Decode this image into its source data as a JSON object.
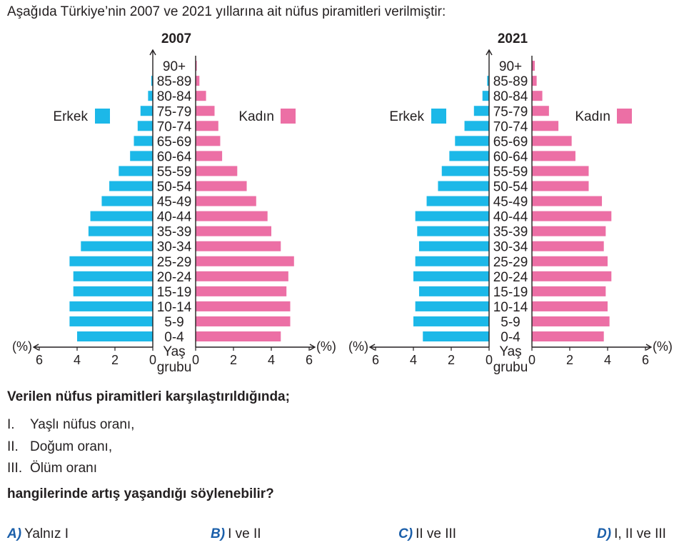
{
  "intro": "Aşağıda Türkiye’nin 2007 ve 2021 yıllarına ait nüfus piramitleri verilmiştir:",
  "question": "Verilen nüfus piramitleri karşılaştırıldığında;",
  "statements": [
    {
      "num": "I.",
      "text": "Yaşlı nüfus oranı,"
    },
    {
      "num": "II.",
      "text": "Doğum oranı,"
    },
    {
      "num": "III.",
      "text": "Ölüm oranı"
    }
  ],
  "ask": "hangilerinde artış yaşandığı söylenebilir?",
  "options": [
    {
      "letter": "A)",
      "text": "Yalnız I"
    },
    {
      "letter": "B)",
      "text": "I ve II"
    },
    {
      "letter": "C)",
      "text": "II ve III"
    },
    {
      "letter": "D)",
      "text": "I, II ve III"
    }
  ],
  "colors": {
    "male": "#1cb8e8",
    "female": "#ec6fa5",
    "text": "#231f20"
  },
  "chart_data": [
    {
      "type": "bar",
      "orientation": "horizontal-population-pyramid",
      "title": "2007",
      "categories": [
        "0-4",
        "5-9",
        "10-14",
        "15-19",
        "20-24",
        "25-29",
        "30-34",
        "35-39",
        "40-44",
        "45-49",
        "50-54",
        "55-59",
        "60-64",
        "65-69",
        "70-74",
        "75-79",
        "80-84",
        "85-89",
        "90+"
      ],
      "series": [
        {
          "name": "Erkek",
          "values": [
            4.0,
            4.4,
            4.4,
            4.2,
            4.2,
            4.4,
            3.8,
            3.4,
            3.3,
            2.7,
            2.3,
            1.8,
            1.2,
            1.0,
            0.8,
            0.65,
            0.25,
            0.08,
            0.02
          ]
        },
        {
          "name": "Kadın",
          "values": [
            4.5,
            5.0,
            5.0,
            4.8,
            4.9,
            5.2,
            4.5,
            4.0,
            3.8,
            3.2,
            2.7,
            2.2,
            1.4,
            1.3,
            1.2,
            1.0,
            0.55,
            0.2,
            0.06
          ]
        }
      ],
      "xlabel": "(%)",
      "ylabel": "Yaş grubu",
      "xticks": [
        "6",
        "4",
        "2",
        "0",
        "2",
        "4",
        "6"
      ],
      "xlim": [
        0,
        6
      ],
      "legend": "left and right of axis"
    },
    {
      "type": "bar",
      "orientation": "horizontal-population-pyramid",
      "title": "2021",
      "categories": [
        "0-4",
        "5-9",
        "10-14",
        "15-19",
        "20-24",
        "25-29",
        "30-34",
        "35-39",
        "40-44",
        "45-49",
        "50-54",
        "55-59",
        "60-64",
        "65-69",
        "70-74",
        "75-79",
        "80-84",
        "85-89",
        "90+"
      ],
      "series": [
        {
          "name": "Erkek",
          "values": [
            3.5,
            4.0,
            3.9,
            3.7,
            4.0,
            3.9,
            3.7,
            3.8,
            3.9,
            3.3,
            2.7,
            2.5,
            2.1,
            1.8,
            1.3,
            0.8,
            0.35,
            0.1,
            0.02
          ]
        },
        {
          "name": "Kadın",
          "values": [
            3.8,
            4.1,
            4.0,
            3.9,
            4.2,
            4.0,
            3.8,
            3.9,
            4.2,
            3.7,
            3.0,
            3.0,
            2.3,
            2.1,
            1.4,
            0.9,
            0.55,
            0.25,
            0.15
          ]
        }
      ],
      "xlabel": "(%)",
      "ylabel": "Yaş grubu",
      "xticks": [
        "6",
        "4",
        "2",
        "0",
        "2",
        "4",
        "6"
      ],
      "xlim": [
        0,
        6
      ],
      "legend": "left and right of axis"
    }
  ]
}
